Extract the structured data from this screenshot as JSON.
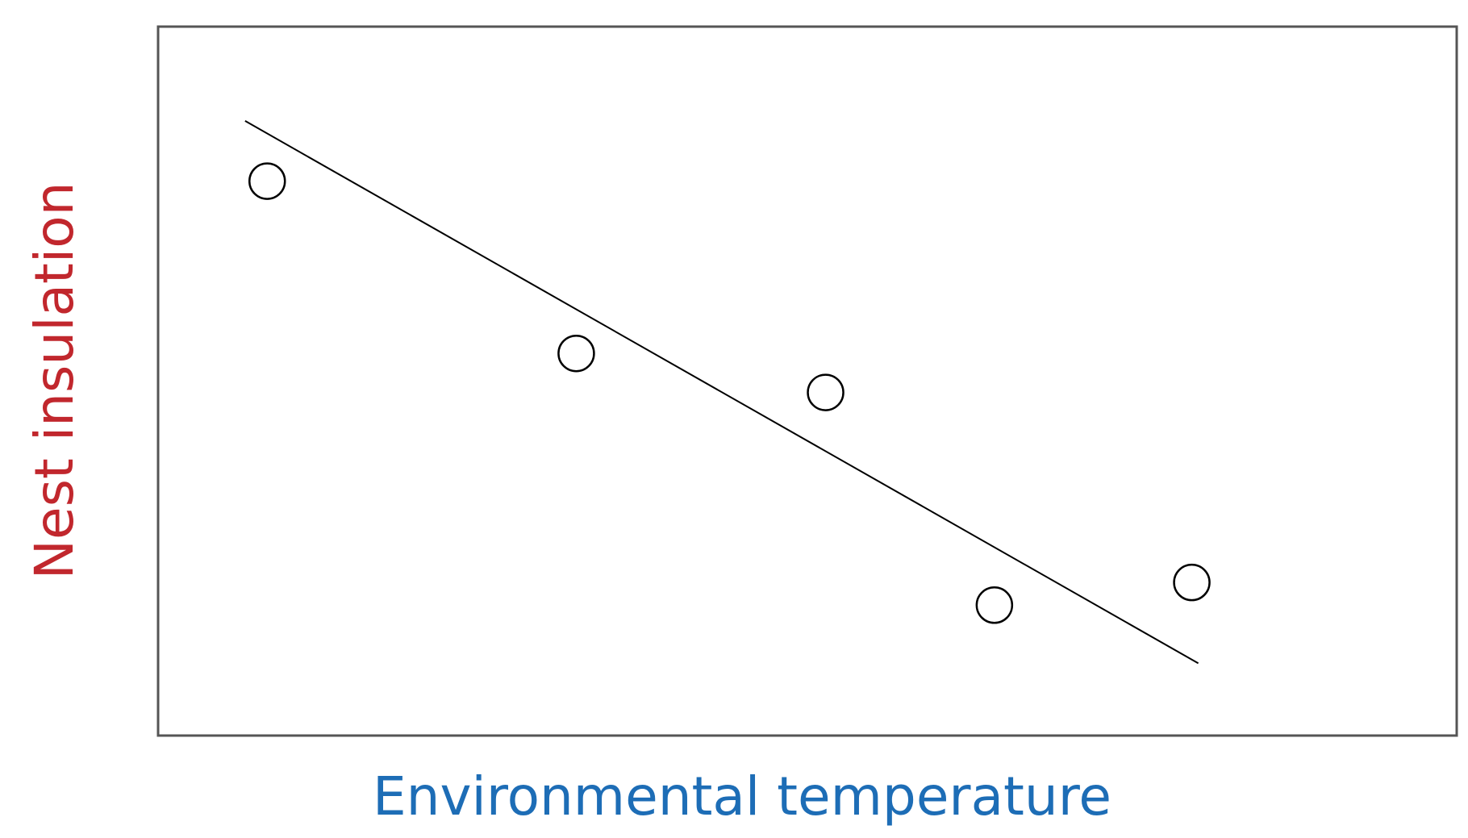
{
  "chart_data": {
    "type": "scatter",
    "xlabel": "Environmental temperature",
    "ylabel": "Nest insulation",
    "x": [
      8.4,
      32.2,
      51.4,
      64.4,
      79.6
    ],
    "values": [
      78.2,
      53.9,
      48.4,
      18.4,
      21.6
    ],
    "color": "#000000",
    "trend_line": {
      "x": [
        6.7,
        80.1
      ],
      "values": [
        86.7,
        10.2
      ],
      "color": "#000000"
    },
    "xlim": [
      0,
      100
    ],
    "ylim": [
      0,
      100
    ]
  }
}
